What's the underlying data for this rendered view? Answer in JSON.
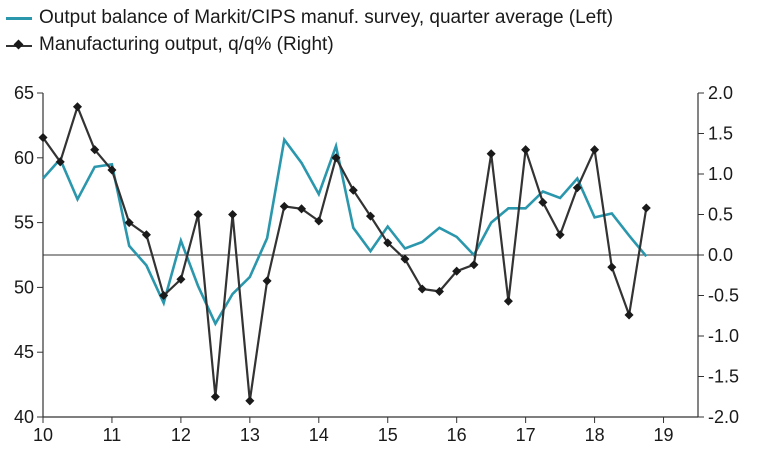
{
  "chart_data": {
    "type": "line",
    "series": [
      {
        "name": "Output balance of Markit/CIPS manuf. survey, quarter average (Left)",
        "axis": "left",
        "color": "#2a97ad",
        "x": [
          10.0,
          10.25,
          10.5,
          10.75,
          11.0,
          11.25,
          11.5,
          11.75,
          12.0,
          12.25,
          12.5,
          12.75,
          13.0,
          13.25,
          13.5,
          13.75,
          14.0,
          14.25,
          14.5,
          14.75,
          15.0,
          15.25,
          15.5,
          15.75,
          16.0,
          16.25,
          16.5,
          16.75,
          17.0,
          17.25,
          17.5,
          17.75,
          18.0,
          18.25,
          18.5,
          18.75
        ],
        "values": [
          58.4,
          59.9,
          56.8,
          59.3,
          59.5,
          53.2,
          51.7,
          48.8,
          53.6,
          50.1,
          47.2,
          49.5,
          50.8,
          53.8,
          61.4,
          59.6,
          57.2,
          60.9,
          54.6,
          52.8,
          54.7,
          53.0,
          53.5,
          54.6,
          53.9,
          52.5,
          55.0,
          56.1,
          56.1,
          57.4,
          56.9,
          58.4,
          55.4,
          55.7,
          54.0,
          52.4
        ]
      },
      {
        "name": "Manufacturing output, q/q% (Right)",
        "axis": "right",
        "color": "#333333",
        "x": [
          10.0,
          10.25,
          10.5,
          10.75,
          11.0,
          11.25,
          11.5,
          11.75,
          12.0,
          12.25,
          12.5,
          12.75,
          13.0,
          13.25,
          13.5,
          13.75,
          14.0,
          14.25,
          14.5,
          14.75,
          15.0,
          15.25,
          15.5,
          15.75,
          16.0,
          16.25,
          16.5,
          16.75,
          17.0,
          17.25,
          17.5,
          17.75,
          18.0,
          18.25,
          18.5,
          18.75
        ],
        "values": [
          1.45,
          1.15,
          1.83,
          1.3,
          1.05,
          0.4,
          0.25,
          -0.5,
          -0.3,
          0.5,
          -1.75,
          0.5,
          -1.8,
          -0.32,
          0.6,
          0.57,
          0.42,
          1.2,
          0.8,
          0.48,
          0.15,
          -0.05,
          -0.42,
          -0.45,
          -0.2,
          -0.12,
          1.25,
          -0.57,
          1.3,
          0.65,
          0.25,
          0.83,
          1.3,
          -0.15,
          -0.74,
          0.58
        ]
      }
    ],
    "legend": [
      "Output balance of Markit/CIPS manuf. survey, quarter average (Left)",
      "Manufacturing output, q/q% (Right)"
    ],
    "xlim": [
      10,
      19.5
    ],
    "x_ticks": [
      10,
      11,
      12,
      13,
      14,
      15,
      16,
      17,
      18,
      19
    ],
    "x_tick_labels": [
      "10",
      "11",
      "12",
      "13",
      "14",
      "15",
      "16",
      "17",
      "18",
      "19"
    ],
    "ylim_left": [
      40,
      65
    ],
    "y_left_ticks": [
      40,
      45,
      50,
      55,
      60,
      65
    ],
    "y_left_tick_labels": [
      "40",
      "45",
      "50",
      "55",
      "60",
      "65"
    ],
    "ylim_right": [
      -2.0,
      2.0
    ],
    "y_right_ticks": [
      -2.0,
      -1.5,
      -1.0,
      -0.5,
      0.0,
      0.5,
      1.0,
      1.5,
      2.0
    ],
    "y_right_tick_labels": [
      "-2.0",
      "-1.5",
      "-1.0",
      "-0.5",
      "0.0",
      "0.5",
      "1.0",
      "1.5",
      "2.0"
    ],
    "reference_line": 0.0,
    "grid": false,
    "legend_position": "top-left"
  }
}
